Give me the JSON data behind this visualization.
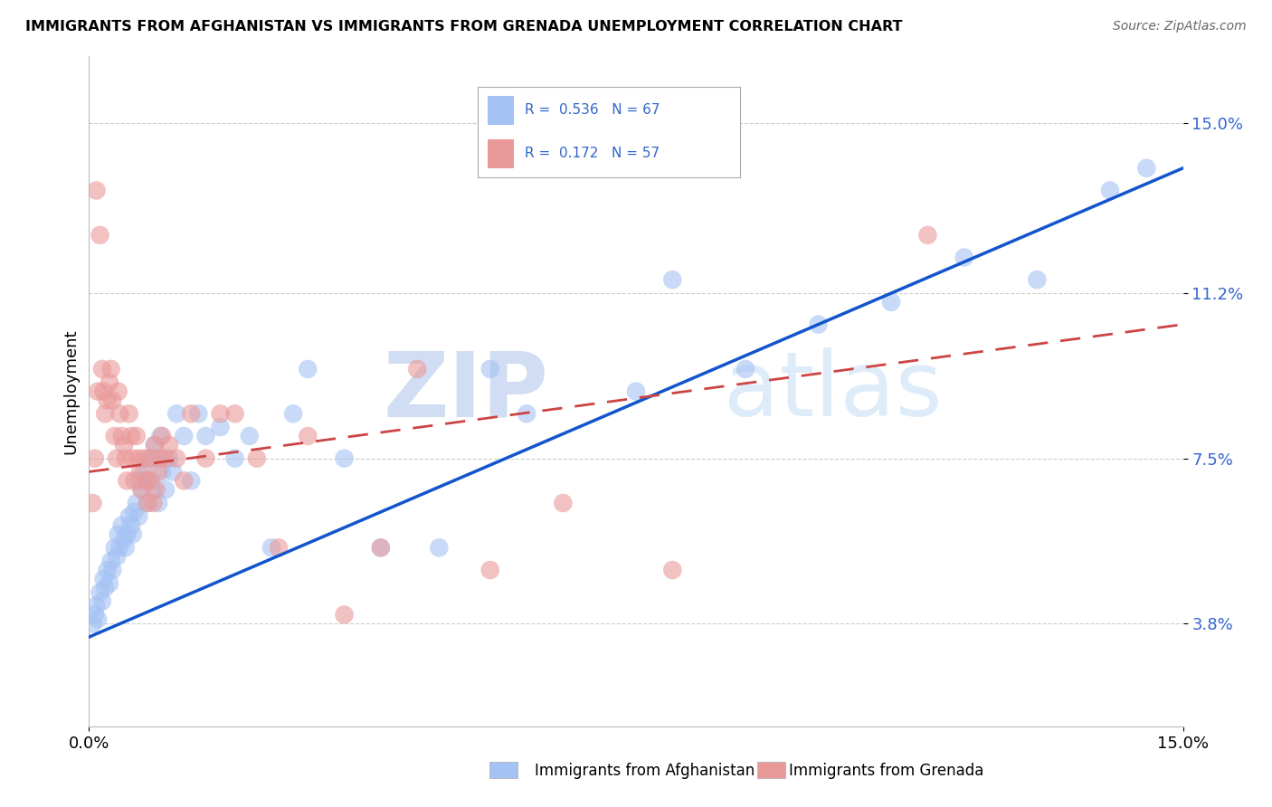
{
  "title": "IMMIGRANTS FROM AFGHANISTAN VS IMMIGRANTS FROM GRENADA UNEMPLOYMENT CORRELATION CHART",
  "source": "Source: ZipAtlas.com",
  "ylabel": "Unemployment",
  "xlim": [
    0.0,
    15.0
  ],
  "ylim": [
    1.5,
    16.5
  ],
  "ytick_vals": [
    3.8,
    7.5,
    11.2,
    15.0
  ],
  "afghanistan_color": "#a4c2f4",
  "afghanistan_line_color": "#1155cc",
  "grenada_color": "#ea9999",
  "grenada_line_color": "#cc4444",
  "afghanistan_R": 0.536,
  "afghanistan_N": 67,
  "grenada_R": 0.172,
  "grenada_N": 57,
  "watermark_zip": "ZIP",
  "watermark_atlas": "atlas",
  "label_color": "#3366cc",
  "afghanistan_points_x": [
    0.05,
    0.08,
    0.1,
    0.12,
    0.15,
    0.18,
    0.2,
    0.22,
    0.25,
    0.28,
    0.3,
    0.32,
    0.35,
    0.38,
    0.4,
    0.42,
    0.45,
    0.48,
    0.5,
    0.52,
    0.55,
    0.58,
    0.6,
    0.62,
    0.65,
    0.68,
    0.7,
    0.72,
    0.75,
    0.78,
    0.8,
    0.82,
    0.85,
    0.88,
    0.9,
    0.92,
    0.95,
    0.98,
    1.0,
    1.05,
    1.1,
    1.15,
    1.2,
    1.3,
    1.4,
    1.5,
    1.6,
    1.8,
    2.0,
    2.2,
    2.5,
    2.8,
    3.0,
    3.5,
    4.0,
    4.8,
    5.5,
    6.0,
    7.5,
    8.0,
    9.0,
    10.0,
    11.0,
    12.0,
    13.0,
    14.0,
    14.5
  ],
  "afghanistan_points_y": [
    3.8,
    4.0,
    4.2,
    3.9,
    4.5,
    4.3,
    4.8,
    4.6,
    5.0,
    4.7,
    5.2,
    5.0,
    5.5,
    5.3,
    5.8,
    5.5,
    6.0,
    5.7,
    5.5,
    5.8,
    6.2,
    6.0,
    5.8,
    6.3,
    6.5,
    6.2,
    7.0,
    6.8,
    7.2,
    7.0,
    6.5,
    7.5,
    7.0,
    6.8,
    7.8,
    7.5,
    6.5,
    8.0,
    7.2,
    6.8,
    7.5,
    7.2,
    8.5,
    8.0,
    7.0,
    8.5,
    8.0,
    8.2,
    7.5,
    8.0,
    5.5,
    8.5,
    9.5,
    7.5,
    5.5,
    5.5,
    9.5,
    8.5,
    9.0,
    11.5,
    9.5,
    10.5,
    11.0,
    12.0,
    11.5,
    13.5,
    14.0
  ],
  "grenada_points_x": [
    0.05,
    0.08,
    0.1,
    0.12,
    0.15,
    0.18,
    0.2,
    0.22,
    0.25,
    0.28,
    0.3,
    0.32,
    0.35,
    0.38,
    0.4,
    0.42,
    0.45,
    0.48,
    0.5,
    0.52,
    0.55,
    0.58,
    0.6,
    0.62,
    0.65,
    0.68,
    0.7,
    0.72,
    0.75,
    0.78,
    0.8,
    0.82,
    0.85,
    0.88,
    0.9,
    0.92,
    0.95,
    0.98,
    1.0,
    1.05,
    1.1,
    1.2,
    1.3,
    1.4,
    1.6,
    1.8,
    2.0,
    2.3,
    2.6,
    3.0,
    3.5,
    4.0,
    4.5,
    5.5,
    6.5,
    8.0,
    11.5
  ],
  "grenada_points_y": [
    6.5,
    7.5,
    13.5,
    9.0,
    12.5,
    9.5,
    9.0,
    8.5,
    8.8,
    9.2,
    9.5,
    8.8,
    8.0,
    7.5,
    9.0,
    8.5,
    8.0,
    7.8,
    7.5,
    7.0,
    8.5,
    8.0,
    7.5,
    7.0,
    8.0,
    7.5,
    7.2,
    6.8,
    7.5,
    7.0,
    6.5,
    7.0,
    7.5,
    6.5,
    7.8,
    6.8,
    7.2,
    7.5,
    8.0,
    7.5,
    7.8,
    7.5,
    7.0,
    8.5,
    7.5,
    8.5,
    8.5,
    7.5,
    5.5,
    8.0,
    4.0,
    5.5,
    9.5,
    5.0,
    6.5,
    5.0,
    12.5
  ]
}
